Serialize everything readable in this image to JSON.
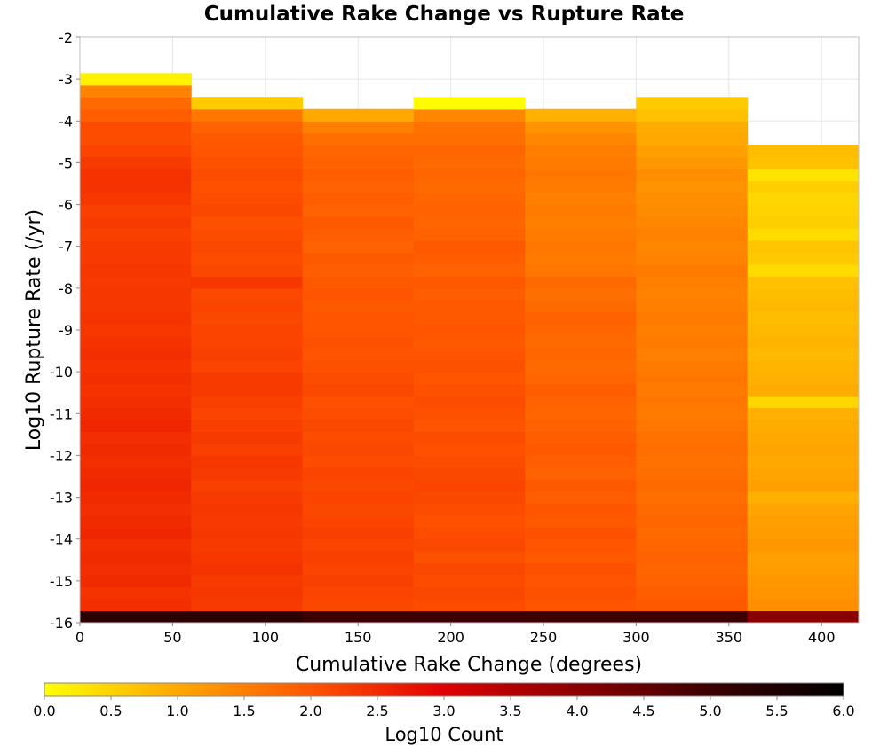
{
  "chart_data": {
    "type": "heatmap",
    "title": "Cumulative Rake Change vs Rupture Rate",
    "xlabel": "Cumulative Rake Change (degrees)",
    "ylabel": "Log10 Rupture Rate (/yr)",
    "xlim": [
      0,
      420
    ],
    "ylim": [
      -16,
      -2
    ],
    "x_ticks": [
      0,
      50,
      100,
      150,
      200,
      250,
      300,
      350,
      400
    ],
    "y_ticks": [
      -2,
      -3,
      -4,
      -5,
      -6,
      -7,
      -8,
      -9,
      -10,
      -11,
      -12,
      -13,
      -14,
      -15,
      -16
    ],
    "x_bin_edges": [
      0,
      60,
      120,
      180,
      240,
      300,
      360,
      420
    ],
    "y_bin_start": -16,
    "y_bin_width": 0.2857,
    "grid": true,
    "colorbar": {
      "label": "Log10 Count",
      "range": [
        0,
        6
      ],
      "ticks": [
        "0.0",
        "0.5",
        "1.0",
        "1.5",
        "2.0",
        "2.5",
        "3.0",
        "3.5",
        "4.0",
        "4.5",
        "5.0",
        "5.5",
        "6.0"
      ],
      "colors": [
        "#ffff00",
        "#ffd200",
        "#ffa800",
        "#ff7f00",
        "#ff5500",
        "#f22a00",
        "#e00000",
        "#b40000",
        "#8c0000",
        "#640000",
        "#3c0000",
        "#1e0000",
        "#000000"
      ]
    },
    "columns": [
      {
        "x0": 0,
        "x1": 60,
        "top_bin": 45,
        "top_value": 0.15,
        "base_value": 5.3,
        "values": [
          2.45,
          2.4,
          2.5,
          2.45,
          2.5,
          2.45,
          2.55,
          2.5,
          2.45,
          2.5,
          2.55,
          2.5,
          2.45,
          2.5,
          2.45,
          2.55,
          2.5,
          2.45,
          2.4,
          2.45,
          2.4,
          2.45,
          2.4,
          2.35,
          2.4,
          2.35,
          2.35,
          2.3,
          2.35,
          2.3,
          2.3,
          2.25,
          2.3,
          2.25,
          2.35,
          2.4,
          2.4,
          2.3,
          2.2,
          2.1,
          2.1,
          1.9,
          1.75,
          1.45,
          1.05
        ]
      },
      {
        "x0": 60,
        "x1": 120,
        "top_bin": 43,
        "top_value": 0.6,
        "base_value": 5.3,
        "values": [
          2.3,
          2.35,
          2.3,
          2.4,
          2.35,
          2.3,
          2.35,
          2.3,
          2.35,
          2.3,
          2.25,
          2.3,
          2.35,
          2.25,
          2.3,
          2.25,
          2.2,
          2.25,
          2.3,
          2.3,
          2.2,
          2.25,
          2.2,
          2.2,
          2.15,
          2.2,
          2.15,
          2.35,
          2.15,
          2.1,
          2.15,
          2.1,
          2.05,
          2.15,
          2.1,
          2.05,
          2.1,
          2.05,
          2.0,
          1.95,
          1.85,
          1.6,
          1.2
        ]
      },
      {
        "x0": 120,
        "x1": 180,
        "top_bin": 42,
        "top_value": 1.0,
        "base_value": 5.0,
        "values": [
          2.15,
          2.2,
          2.25,
          2.2,
          2.25,
          2.2,
          2.25,
          2.2,
          2.15,
          2.2,
          2.15,
          2.2,
          2.1,
          2.15,
          2.1,
          2.15,
          2.1,
          2.05,
          2.15,
          2.1,
          2.05,
          2.0,
          2.05,
          2.0,
          2.0,
          1.95,
          2.0,
          1.95,
          1.9,
          1.95,
          1.85,
          1.9,
          1.95,
          1.85,
          1.9,
          1.85,
          1.9,
          1.85,
          1.8,
          1.7,
          1.5,
          1.15
        ]
      },
      {
        "x0": 180,
        "x1": 240,
        "top_bin": 43,
        "top_value": 0.05,
        "base_value": 5.0,
        "values": [
          2.1,
          2.15,
          2.1,
          2.15,
          2.05,
          2.15,
          2.1,
          2.05,
          2.1,
          2.15,
          2.2,
          2.15,
          2.1,
          2.05,
          2.1,
          2.0,
          2.05,
          2.1,
          2.05,
          2.0,
          2.05,
          2.0,
          1.95,
          2.0,
          1.95,
          1.95,
          1.9,
          1.95,
          1.85,
          1.9,
          1.95,
          1.85,
          1.8,
          1.85,
          1.8,
          1.75,
          1.8,
          1.75,
          1.8,
          1.7,
          1.65,
          1.4,
          0.25
        ]
      },
      {
        "x0": 240,
        "x1": 300,
        "top_bin": 42,
        "top_value": 0.9,
        "base_value": 5.0,
        "values": [
          2.0,
          2.05,
          2.0,
          2.05,
          1.95,
          2.0,
          2.05,
          1.95,
          2.0,
          1.9,
          1.95,
          1.85,
          1.9,
          1.95,
          1.9,
          1.85,
          1.8,
          1.85,
          1.9,
          1.8,
          1.75,
          1.8,
          1.75,
          1.8,
          1.85,
          1.75,
          1.7,
          1.75,
          1.6,
          1.55,
          1.6,
          1.55,
          1.5,
          1.55,
          1.5,
          1.55,
          1.6,
          1.55,
          1.5,
          1.4,
          1.25,
          1.05
        ]
      },
      {
        "x0": 300,
        "x1": 360,
        "top_bin": 43,
        "top_value": 0.6,
        "base_value": 5.0,
        "values": [
          1.95,
          1.9,
          1.85,
          1.8,
          1.85,
          1.8,
          1.75,
          1.8,
          1.75,
          1.7,
          1.75,
          1.7,
          1.65,
          1.7,
          1.65,
          1.6,
          1.55,
          1.6,
          1.55,
          1.6,
          1.55,
          1.5,
          1.55,
          1.5,
          1.55,
          1.5,
          1.45,
          1.5,
          1.55,
          1.45,
          1.4,
          1.45,
          1.4,
          1.35,
          1.3,
          1.25,
          1.3,
          1.2,
          1.1,
          1.0,
          0.95,
          0.7,
          0.55
        ]
      },
      {
        "x0": 360,
        "x1": 420,
        "top_bin": 39,
        "top_value": 0.75,
        "base_value": 4.05,
        "values": [
          1.3,
          1.25,
          1.2,
          1.15,
          1.1,
          1.2,
          1.15,
          1.1,
          1.05,
          0.9,
          1.1,
          1.05,
          1.0,
          1.05,
          1.0,
          0.95,
          0.9,
          0.45,
          0.95,
          0.9,
          0.85,
          0.8,
          0.85,
          0.8,
          0.75,
          0.8,
          0.75,
          0.7,
          0.4,
          0.6,
          0.65,
          0.4,
          0.55,
          0.5,
          0.45,
          0.55,
          0.3,
          0.7,
          0.85
        ]
      }
    ]
  }
}
